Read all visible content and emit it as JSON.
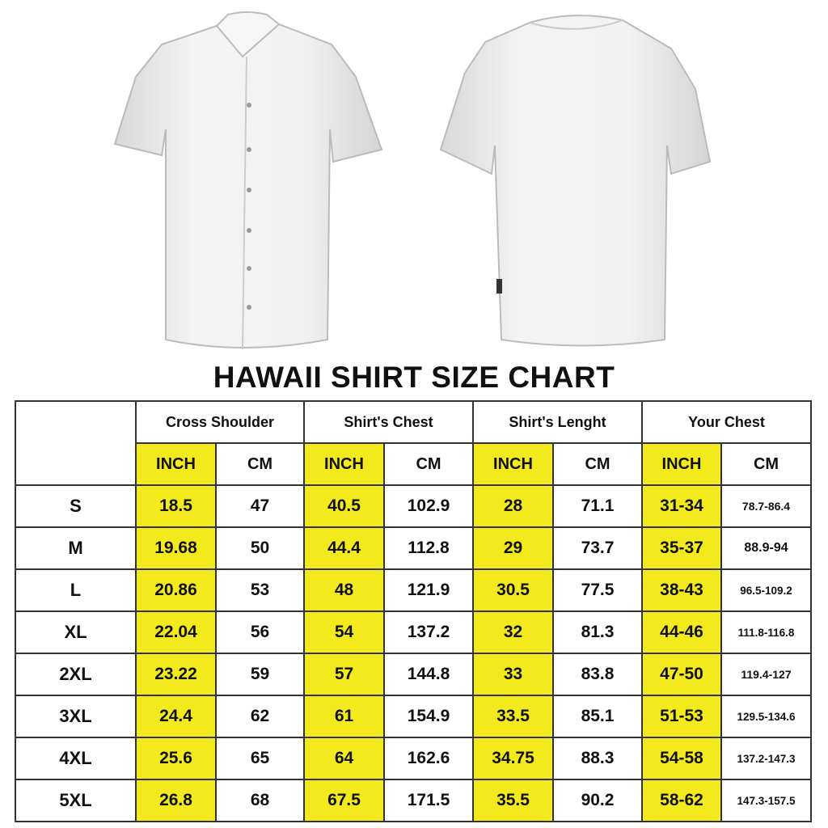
{
  "title": "HAWAII SHIRT SIZE CHART",
  "colors": {
    "highlight": "#f2ea1d",
    "border": "#333333"
  },
  "images": {
    "front": "white short-sleeve button shirt front",
    "back": "white short-sleeve shirt back"
  },
  "table": {
    "groups": [
      "Cross Shoulder",
      "Shirt's Chest",
      "Shirt's Lenght",
      "Your Chest"
    ],
    "units": [
      "INCH",
      "CM"
    ],
    "rows": [
      {
        "size": "S",
        "values": [
          "18.5",
          "47",
          "40.5",
          "102.9",
          "28",
          "71.1",
          "31-34",
          "78.7-86.4"
        ]
      },
      {
        "size": "M",
        "values": [
          "19.68",
          "50",
          "44.4",
          "112.8",
          "29",
          "73.7",
          "35-37",
          "88.9-94"
        ]
      },
      {
        "size": "L",
        "values": [
          "20.86",
          "53",
          "48",
          "121.9",
          "30.5",
          "77.5",
          "38-43",
          "96.5-109.2"
        ]
      },
      {
        "size": "XL",
        "values": [
          "22.04",
          "56",
          "54",
          "137.2",
          "32",
          "81.3",
          "44-46",
          "111.8-116.8"
        ]
      },
      {
        "size": "2XL",
        "values": [
          "23.22",
          "59",
          "57",
          "144.8",
          "33",
          "83.8",
          "47-50",
          "119.4-127"
        ]
      },
      {
        "size": "3XL",
        "values": [
          "24.4",
          "62",
          "61",
          "154.9",
          "33.5",
          "85.1",
          "51-53",
          "129.5-134.6"
        ]
      },
      {
        "size": "4XL",
        "values": [
          "25.6",
          "65",
          "64",
          "162.6",
          "34.75",
          "88.3",
          "54-58",
          "137.2-147.3"
        ]
      },
      {
        "size": "5XL",
        "values": [
          "26.8",
          "68",
          "67.5",
          "171.5",
          "35.5",
          "90.2",
          "58-62",
          "147.3-157.5"
        ]
      }
    ]
  }
}
